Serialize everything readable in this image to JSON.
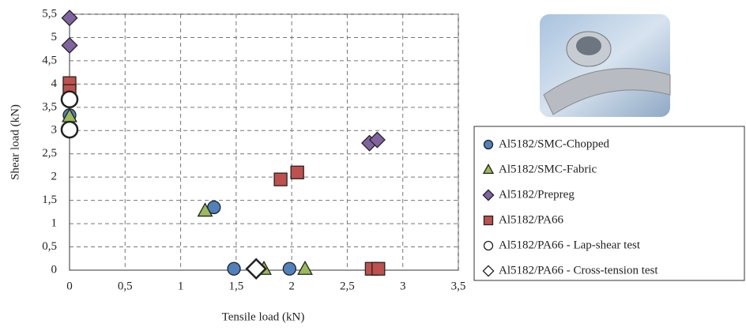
{
  "chart_data": {
    "type": "scatter",
    "xlabel": "Tensile load (kN)",
    "ylabel": "Shear load  (kN)",
    "xlim": [
      0,
      3.5
    ],
    "ylim": [
      0,
      5.5
    ],
    "xticks": [
      0,
      {
        "value": 0.5,
        "label": "0,5"
      },
      1,
      {
        "value": 1.5,
        "label": "1,5"
      },
      2,
      {
        "value": 2.5,
        "label": "2,5"
      },
      3,
      {
        "value": 3.5,
        "label": "3,5"
      }
    ],
    "yticks": [
      0,
      {
        "value": 0.5,
        "label": "0,5"
      },
      1,
      {
        "value": 1.5,
        "label": "1,5"
      },
      2,
      {
        "value": 2.5,
        "label": "2,5"
      },
      3,
      {
        "value": 3.5,
        "label": "3,5"
      },
      4,
      {
        "value": 4.5,
        "label": "4,5"
      },
      5,
      {
        "value": 5.5,
        "label": "5,5"
      }
    ],
    "grid": true,
    "series": [
      {
        "name": "Al5182/SMC-Chopped",
        "color": "#4f81bd",
        "marker": "circle",
        "x": [
          0,
          1.3,
          1.48,
          1.98
        ],
        "values": [
          3.33,
          1.35,
          0.03,
          0.03
        ]
      },
      {
        "name": "Al5182/SMC-Fabric",
        "color": "#9bbb59",
        "marker": "triangle",
        "x": [
          0,
          1.22,
          1.75,
          2.12
        ],
        "values": [
          3.3,
          1.27,
          0.02,
          0.02
        ]
      },
      {
        "name": "Al5182/Prepreg",
        "color": "#8064a2",
        "marker": "diamond",
        "x": [
          0,
          0,
          2.7,
          2.77
        ],
        "values": [
          5.42,
          4.83,
          2.73,
          2.8
        ]
      },
      {
        "name": "Al5182/PA66",
        "color": "#c0504d",
        "marker": "square",
        "x": [
          0,
          0,
          1.9,
          2.05,
          2.72,
          2.78
        ],
        "values": [
          4.02,
          3.85,
          1.95,
          2.1,
          0.03,
          0.03
        ]
      },
      {
        "name": "Al5182/PA66 - Lap-shear test",
        "color": "#ffffff",
        "marker": "large-circle",
        "x": [
          0,
          0
        ],
        "values": [
          3.67,
          3.02
        ]
      },
      {
        "name": "Al5182/PA66 - Cross-tension test",
        "color": "#ffffff",
        "marker": "large-diamond",
        "x": [
          1.68
        ],
        "values": [
          0.03
        ]
      }
    ]
  }
}
